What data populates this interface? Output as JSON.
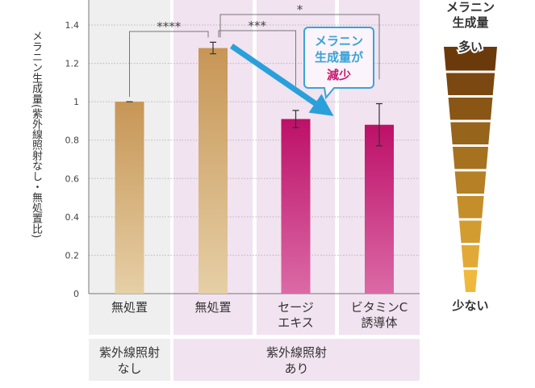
{
  "chart_data": {
    "type": "bar",
    "ylabel": "メラニン生成量(紫外線照射なし・無処置比)",
    "ylim": [
      0,
      1.4
    ],
    "yticks": [
      "0",
      "0.2",
      "0.4",
      "0.6",
      "0.8",
      "1",
      "1.2",
      "1.4"
    ],
    "grid": true,
    "categories": [
      {
        "lines": [
          "無処置"
        ]
      },
      {
        "lines": [
          "無処置"
        ]
      },
      {
        "lines": [
          "セージ",
          "エキス"
        ]
      },
      {
        "lines": [
          "ビタミンC",
          "誘導体"
        ]
      }
    ],
    "groups": [
      {
        "lines": [
          "紫外線照射",
          "なし"
        ],
        "span": [
          0,
          0
        ]
      },
      {
        "lines": [
          "紫外線照射",
          "あり"
        ],
        "span": [
          1,
          3
        ]
      }
    ],
    "values": [
      1.0,
      1.28,
      0.91,
      0.88
    ],
    "errors": [
      0.0,
      0.03,
      0.045,
      0.11
    ],
    "bar_colors": [
      "#c9995a",
      "#c9995a",
      "#c0146a",
      "#c0146a"
    ],
    "significance": [
      {
        "from": 0,
        "to": 1,
        "label": "****"
      },
      {
        "from": 1,
        "to": 2,
        "label": "***"
      },
      {
        "from": 1,
        "to": 3,
        "label": "*"
      }
    ],
    "annotation": {
      "lines": [
        "メラニン",
        "生成量が"
      ],
      "emphasis": "減少",
      "color": "#3aa3d8"
    },
    "scale": {
      "title": [
        "メラニン",
        "生成量"
      ],
      "high": "多い",
      "low": "少ない",
      "steps": 10
    }
  }
}
